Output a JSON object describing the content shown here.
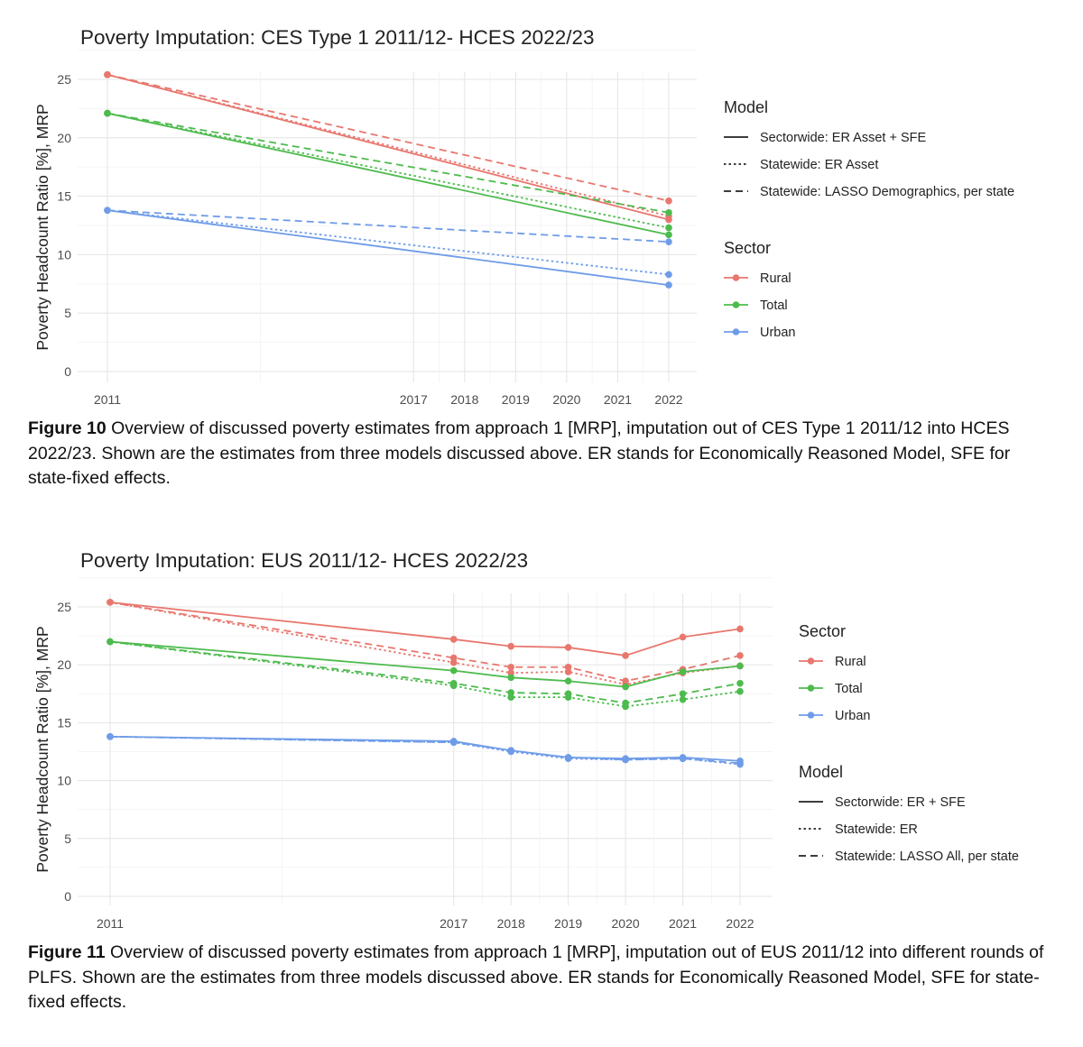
{
  "figures": [
    {
      "caption_label": "Figure 10",
      "caption_text": " Overview of discussed poverty estimates from approach 1 [MRP], imputation out of CES Type 1 2011/12 into HCES 2022/23. Shown are the estimates from three models discussed above. ER stands for Economically Reasoned Model, SFE for state-fixed effects."
    },
    {
      "caption_label": "Figure 11",
      "caption_text": " Overview of discussed poverty estimates from approach 1 [MRP], imputation out of EUS 2011/12 into different rounds of PLFS. Shown are the estimates from three models discussed above. ER stands for Economically Reasoned Model, SFE for state-fixed effects."
    }
  ],
  "chart_data": [
    {
      "type": "line",
      "title": "Poverty Imputation: CES Type 1 2011/12- HCES 2022/23",
      "xlabel": "",
      "ylabel": "Poverty Headcount Ratio [%], MRP",
      "x_ticks": [
        2011,
        2017,
        2018,
        2019,
        2020,
        2021,
        2022
      ],
      "x_range": [
        2011,
        2022
      ],
      "y_ticks": [
        0,
        5,
        10,
        15,
        20,
        25
      ],
      "ylim": [
        0,
        25
      ],
      "grid": true,
      "legend_position": "right",
      "legend_order": [
        "model",
        "sector"
      ],
      "model_legend_title": "Model",
      "sector_legend_title": "Sector",
      "models": [
        {
          "name": "Sectorwide: ER Asset + SFE",
          "dash": "solid"
        },
        {
          "name": "Statewide: ER Asset",
          "dash": "dotted"
        },
        {
          "name": "Statewide: LASSO Demographics, per state",
          "dash": "dashed"
        }
      ],
      "sectors": [
        {
          "name": "Rural",
          "color": "#e8776e"
        },
        {
          "name": "Total",
          "color": "#4dbb4d"
        },
        {
          "name": "Urban",
          "color": "#6f9ce8"
        }
      ],
      "series": [
        {
          "sector": "Rural",
          "model": "Sectorwide: ER Asset + SFE",
          "x": [
            2011,
            2022
          ],
          "y": [
            25.4,
            13.0
          ]
        },
        {
          "sector": "Rural",
          "model": "Statewide: ER Asset",
          "x": [
            2011,
            2022
          ],
          "y": [
            25.4,
            13.3
          ]
        },
        {
          "sector": "Rural",
          "model": "Statewide: LASSO Demographics, per state",
          "x": [
            2011,
            2022
          ],
          "y": [
            25.4,
            14.6
          ]
        },
        {
          "sector": "Total",
          "model": "Sectorwide: ER Asset + SFE",
          "x": [
            2011,
            2022
          ],
          "y": [
            22.1,
            11.7
          ]
        },
        {
          "sector": "Total",
          "model": "Statewide: ER Asset",
          "x": [
            2011,
            2022
          ],
          "y": [
            22.1,
            12.3
          ]
        },
        {
          "sector": "Total",
          "model": "Statewide: LASSO Demographics, per state",
          "x": [
            2011,
            2022
          ],
          "y": [
            22.1,
            13.6
          ]
        },
        {
          "sector": "Urban",
          "model": "Sectorwide: ER Asset + SFE",
          "x": [
            2011,
            2022
          ],
          "y": [
            13.8,
            7.4
          ]
        },
        {
          "sector": "Urban",
          "model": "Statewide: ER Asset",
          "x": [
            2011,
            2022
          ],
          "y": [
            13.8,
            8.3
          ]
        },
        {
          "sector": "Urban",
          "model": "Statewide: LASSO Demographics, per state",
          "x": [
            2011,
            2022
          ],
          "y": [
            13.8,
            11.1
          ]
        }
      ]
    },
    {
      "type": "line",
      "title": "Poverty Imputation: EUS 2011/12- HCES 2022/23",
      "xlabel": "",
      "ylabel": "Poverty Headcount Ratio [%], MRP",
      "x_ticks": [
        2011,
        2017,
        2018,
        2019,
        2020,
        2021,
        2022
      ],
      "x_range": [
        2011,
        2022
      ],
      "y_ticks": [
        0,
        5,
        10,
        15,
        20,
        25
      ],
      "ylim": [
        0,
        25
      ],
      "grid": true,
      "legend_position": "right",
      "legend_order": [
        "sector",
        "model"
      ],
      "model_legend_title": "Model",
      "sector_legend_title": "Sector",
      "models": [
        {
          "name": "Sectorwide: ER + SFE",
          "dash": "solid"
        },
        {
          "name": "Statewide: ER",
          "dash": "dotted"
        },
        {
          "name": "Statewide: LASSO All, per state",
          "dash": "dashed"
        }
      ],
      "sectors": [
        {
          "name": "Rural",
          "color": "#e8776e"
        },
        {
          "name": "Total",
          "color": "#4dbb4d"
        },
        {
          "name": "Urban",
          "color": "#6f9ce8"
        }
      ],
      "series": [
        {
          "sector": "Rural",
          "model": "Sectorwide: ER + SFE",
          "x": [
            2011,
            2017,
            2018,
            2019,
            2020,
            2021,
            2022
          ],
          "y": [
            25.4,
            22.2,
            21.6,
            21.5,
            20.8,
            22.4,
            23.1
          ]
        },
        {
          "sector": "Rural",
          "model": "Statewide: ER",
          "x": [
            2011,
            2017,
            2018,
            2019,
            2020,
            2021,
            2022
          ],
          "y": [
            25.4,
            20.2,
            19.3,
            19.4,
            18.3,
            19.3,
            19.9
          ]
        },
        {
          "sector": "Rural",
          "model": "Statewide: LASSO All, per state",
          "x": [
            2011,
            2017,
            2018,
            2019,
            2020,
            2021,
            2022
          ],
          "y": [
            25.4,
            20.6,
            19.8,
            19.8,
            18.6,
            19.6,
            20.8
          ]
        },
        {
          "sector": "Total",
          "model": "Sectorwide: ER + SFE",
          "x": [
            2011,
            2017,
            2018,
            2019,
            2020,
            2021,
            2022
          ],
          "y": [
            22.0,
            19.5,
            18.9,
            18.6,
            18.1,
            19.4,
            19.9
          ]
        },
        {
          "sector": "Total",
          "model": "Statewide: ER",
          "x": [
            2011,
            2017,
            2018,
            2019,
            2020,
            2021,
            2022
          ],
          "y": [
            22.0,
            18.2,
            17.2,
            17.2,
            16.4,
            17.0,
            17.7
          ]
        },
        {
          "sector": "Total",
          "model": "Statewide: LASSO All, per state",
          "x": [
            2011,
            2017,
            2018,
            2019,
            2020,
            2021,
            2022
          ],
          "y": [
            22.0,
            18.4,
            17.6,
            17.5,
            16.7,
            17.5,
            18.4
          ]
        },
        {
          "sector": "Urban",
          "model": "Sectorwide: ER + SFE",
          "x": [
            2011,
            2017,
            2018,
            2019,
            2020,
            2021,
            2022
          ],
          "y": [
            13.8,
            13.4,
            12.6,
            12.0,
            11.9,
            12.0,
            11.7
          ]
        },
        {
          "sector": "Urban",
          "model": "Statewide: ER",
          "x": [
            2011,
            2017,
            2018,
            2019,
            2020,
            2021,
            2022
          ],
          "y": [
            13.8,
            13.3,
            12.5,
            11.9,
            11.8,
            11.9,
            11.4
          ]
        },
        {
          "sector": "Urban",
          "model": "Statewide: LASSO All, per state",
          "x": [
            2011,
            2017,
            2018,
            2019,
            2020,
            2021,
            2022
          ],
          "y": [
            13.8,
            13.3,
            12.6,
            12.0,
            11.8,
            11.9,
            11.5
          ]
        }
      ]
    }
  ]
}
